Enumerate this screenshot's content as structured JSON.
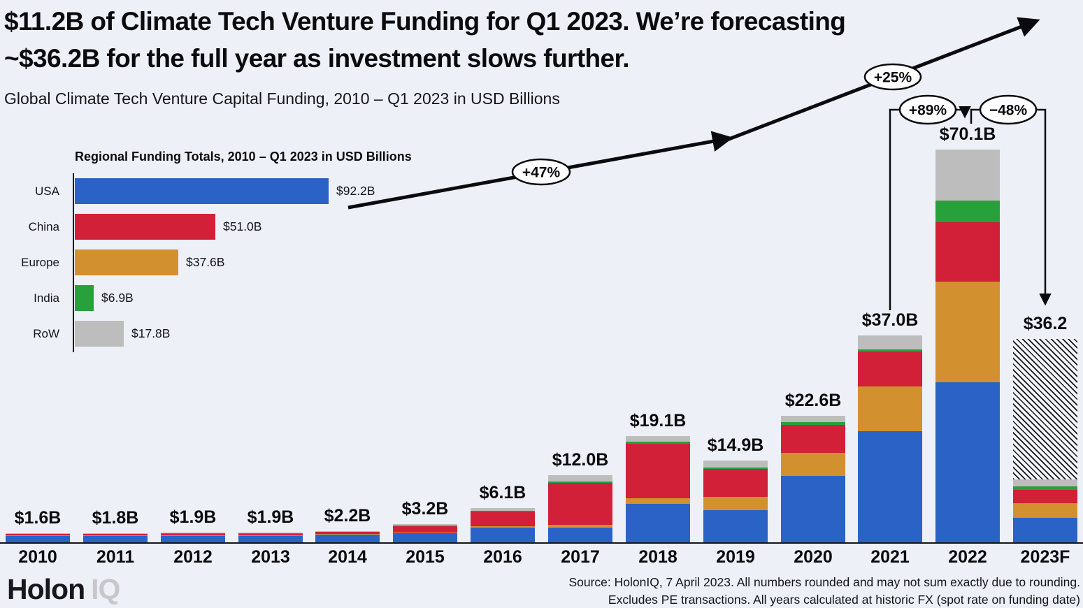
{
  "header": {
    "title_line1": "$11.2B of Climate Tech Venture Funding for Q1 2023. We’re forecasting",
    "title_line2": "~$36.2B for the full year as investment slows further.",
    "subtitle": "Global Climate Tech Venture Capital Funding, 2010 – Q1 2023 in USD Billions"
  },
  "colors": {
    "background": "#edf1f7",
    "ink": "#0b0b0f",
    "usa": "#2b62c6",
    "europe": "#d2912e",
    "china": "#d12038",
    "india": "#28a03c",
    "row": "#bdbdbd"
  },
  "chart_data": [
    {
      "type": "bar",
      "variant": "stacked-vertical",
      "title": "Global Climate Tech Venture Capital Funding, 2010 – Q1 2023 in USD Billions",
      "unit": "USD Billions",
      "categories": [
        "2010",
        "2011",
        "2012",
        "2013",
        "2014",
        "2015",
        "2016",
        "2017",
        "2018",
        "2019",
        "2020",
        "2021",
        "2022",
        "2023F"
      ],
      "totals": [
        1.6,
        1.8,
        1.9,
        1.9,
        2.2,
        3.2,
        6.1,
        12.0,
        19.1,
        14.9,
        22.6,
        37.0,
        70.1,
        36.2
      ],
      "totals_display": [
        "$1.6B",
        "$1.8B",
        "$1.9B",
        "$1.9B",
        "$2.2B",
        "$3.2B",
        "$6.1B",
        "$12.0B",
        "$19.1B",
        "$14.9B",
        "$22.6B",
        "$37.0B",
        "$70.1B",
        "$36.2"
      ],
      "series": [
        {
          "name": "USA",
          "color": "#2b62c6",
          "values": [
            1.2,
            1.3,
            1.3,
            1.3,
            1.55,
            1.7,
            2.7,
            2.7,
            7.0,
            5.9,
            11.9,
            19.9,
            28.6,
            4.5
          ]
        },
        {
          "name": "Europe",
          "color": "#d2912e",
          "values": [
            0.08,
            0.1,
            0.15,
            0.12,
            0.15,
            0.15,
            0.25,
            0.5,
            1.0,
            2.4,
            4.1,
            8.0,
            17.9,
            2.6
          ]
        },
        {
          "name": "China",
          "color": "#d12038",
          "values": [
            0.22,
            0.3,
            0.25,
            0.3,
            0.35,
            1.1,
            2.6,
            7.4,
            9.7,
            5.0,
            5.0,
            6.2,
            10.6,
            2.3
          ]
        },
        {
          "name": "India",
          "color": "#28a03c",
          "values": [
            0.02,
            0.02,
            0.05,
            0.04,
            0.03,
            0.05,
            0.1,
            0.3,
            0.4,
            0.3,
            0.5,
            0.4,
            3.9,
            0.6
          ]
        },
        {
          "name": "RoW",
          "color": "#bdbdbd",
          "values": [
            0.08,
            0.08,
            0.15,
            0.14,
            0.12,
            0.2,
            0.45,
            1.1,
            1.0,
            1.3,
            1.1,
            2.5,
            9.1,
            1.2
          ]
        }
      ],
      "forecast": {
        "category": "2023F",
        "q1_actual_total": 11.2,
        "forecast_total": 36.2,
        "hatched_remainder": 25.0
      },
      "annotations": [
        {
          "label": "+47%",
          "type": "trend-arrow"
        },
        {
          "label": "+25%",
          "type": "trend-arrow"
        },
        {
          "label": "+89%",
          "type": "yoy-change",
          "from": "2021",
          "to": "2022"
        },
        {
          "label": "−48%",
          "type": "yoy-change",
          "from": "2022",
          "to": "2023F"
        }
      ],
      "legend_position": "none",
      "grid": false
    },
    {
      "type": "bar",
      "variant": "horizontal",
      "title": "Regional Funding Totals, 2010 – Q1 2023 in USD Billions",
      "categories": [
        "USA",
        "China",
        "Europe",
        "India",
        "RoW"
      ],
      "values": [
        92.2,
        51.0,
        37.6,
        6.9,
        17.8
      ],
      "values_display": [
        "$92.2B",
        "$51.0B",
        "$37.6B",
        "$6.9B",
        "$17.8B"
      ],
      "bar_colors": [
        "#2b62c6",
        "#d12038",
        "#d2912e",
        "#28a03c",
        "#bdbdbd"
      ],
      "grid": false
    }
  ],
  "footer": {
    "logo_primary": "Holon",
    "logo_secondary": "IQ",
    "source_line1": "Source: HolonIQ, 7 April 2023. All numbers rounded and may not sum exactly due to rounding.",
    "source_line2": "Excludes PE transactions. All years calculated at historic FX (spot rate on funding date)"
  }
}
